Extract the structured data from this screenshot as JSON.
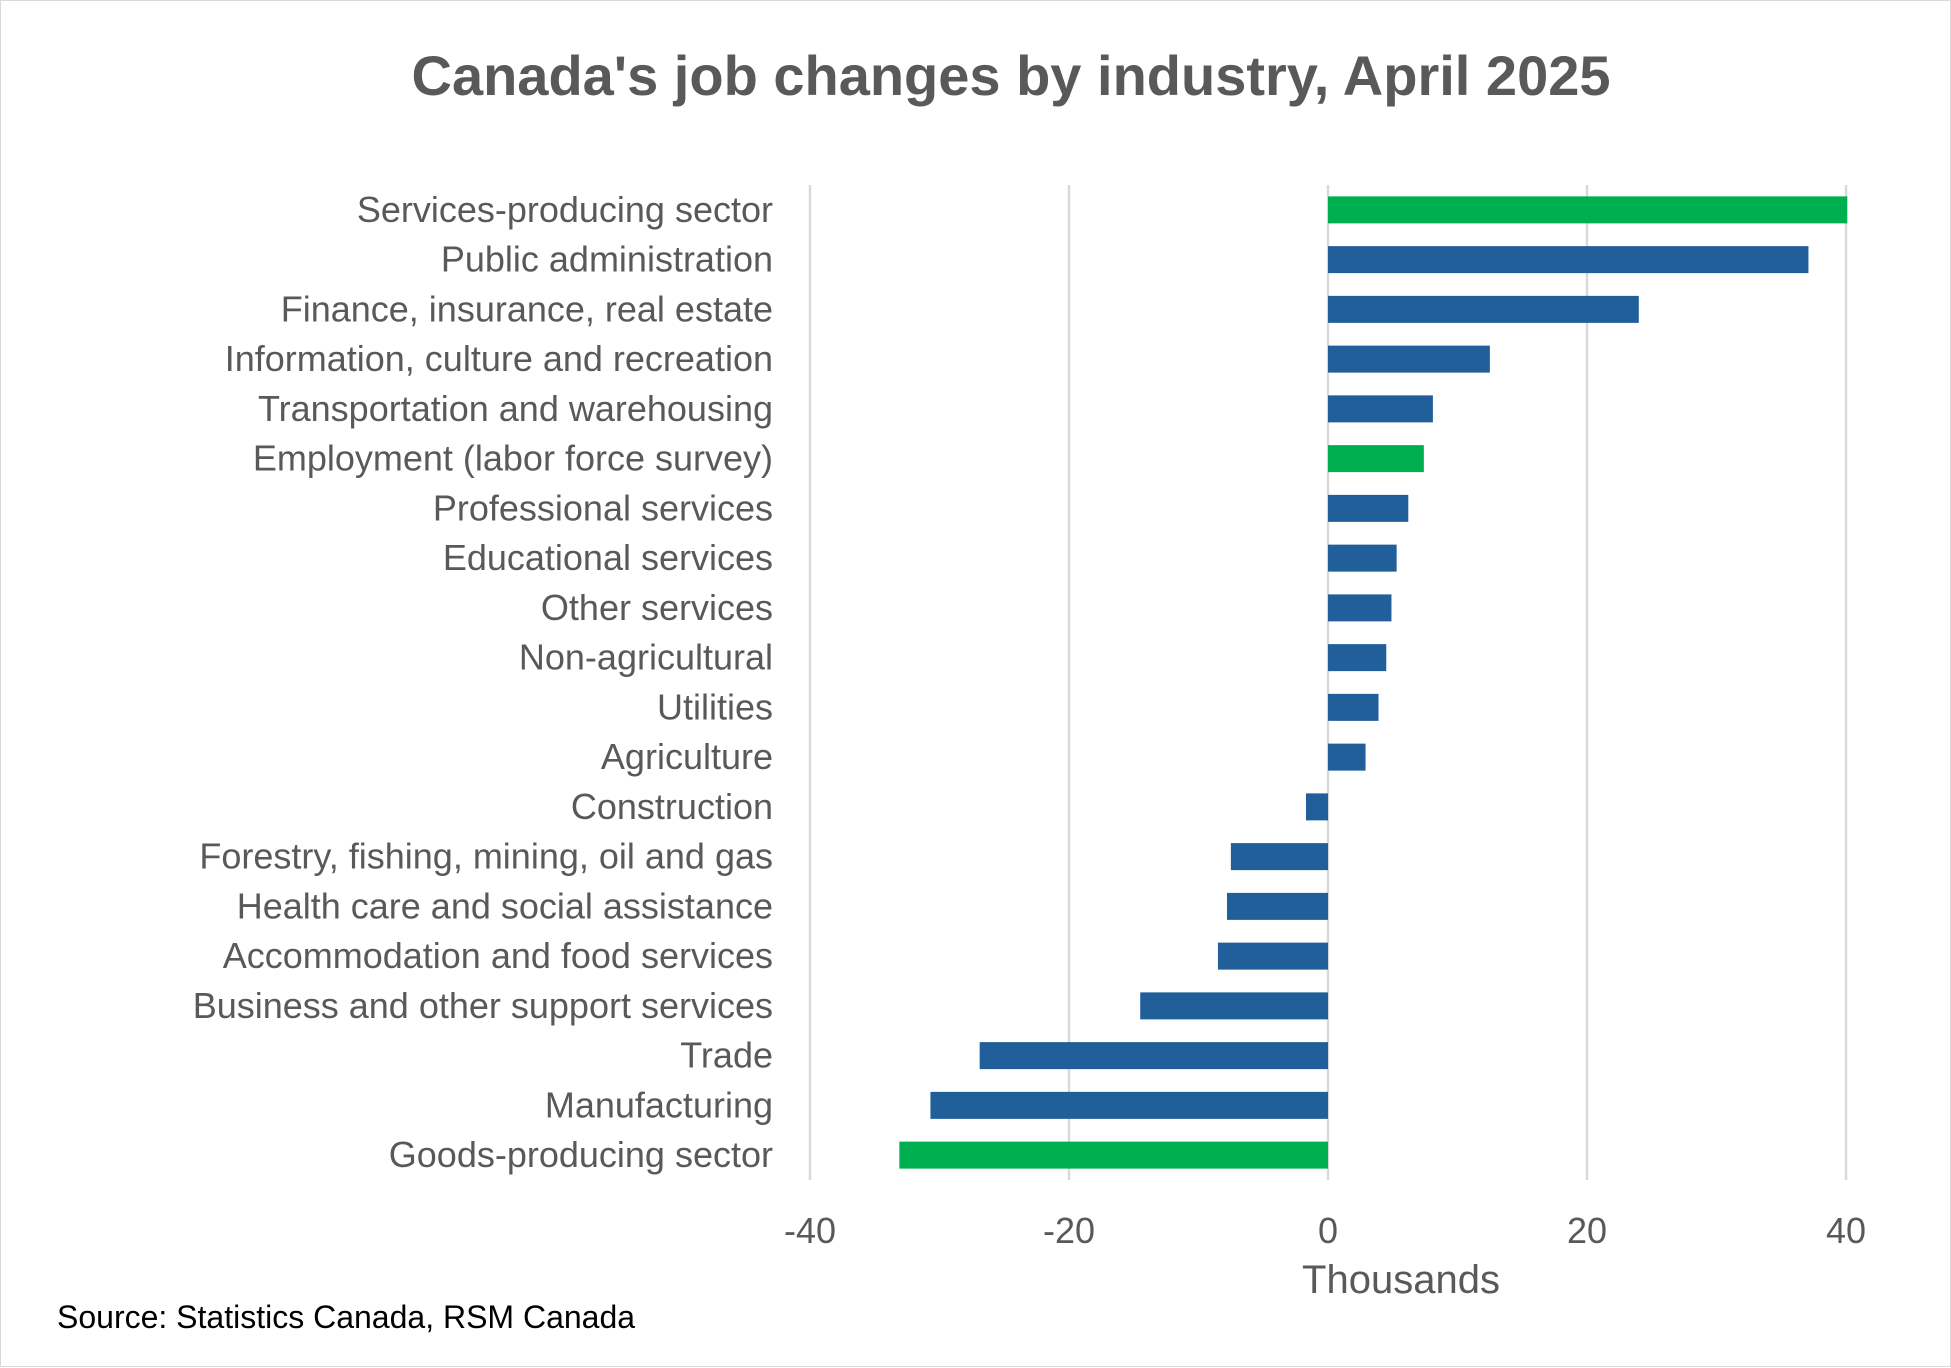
{
  "chart_data": {
    "type": "bar",
    "orientation": "horizontal",
    "title": "Canada's job changes by industry, April 2025",
    "xlabel": "Thousands",
    "ylabel": "",
    "xlim": [
      -40,
      40
    ],
    "xticks": [
      -40,
      -20,
      0,
      20,
      40
    ],
    "xtick_labels": [
      "-40",
      "-20",
      "0",
      "20",
      "40"
    ],
    "grid": "vertical",
    "source": "Source: Statistics Canada, RSM Canada",
    "colors": {
      "industry": "#215F9A",
      "aggregate": "#00B050",
      "grid": "#D9D9D9",
      "text": "#595959"
    },
    "categories": [
      "Services-producing sector",
      "Public administration",
      "Finance, insurance, real estate",
      "Information, culture and recreation",
      "Transportation and warehousing",
      "Employment (labor force survey)",
      "Professional services",
      "Educational services",
      "Other services",
      "Non-agricultural",
      "Utilities",
      "Agriculture",
      "Construction",
      "Forestry, fishing, mining, oil and gas",
      "Health care and social assistance",
      "Accommodation and food services",
      "Business and other support services",
      "Trade",
      "Manufacturing",
      "Goods-producing sector"
    ],
    "values": [
      40.1,
      37.1,
      24.0,
      12.5,
      8.1,
      7.4,
      6.2,
      5.3,
      4.9,
      4.5,
      3.9,
      2.9,
      -1.7,
      -7.5,
      -7.8,
      -8.5,
      -14.5,
      -26.9,
      -30.7,
      -33.1
    ],
    "highlight": [
      true,
      false,
      false,
      false,
      false,
      true,
      false,
      false,
      false,
      false,
      false,
      false,
      false,
      false,
      false,
      false,
      false,
      false,
      false,
      true
    ]
  }
}
